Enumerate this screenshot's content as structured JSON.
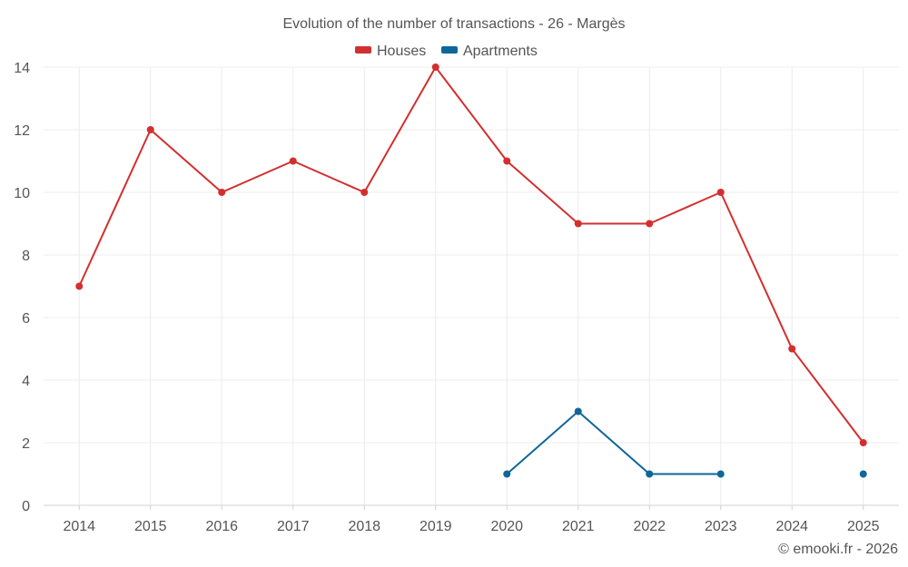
{
  "chart_data": {
    "type": "line",
    "title": "Evolution of the number of transactions - 26 - Margès",
    "categories": [
      "2014",
      "2015",
      "2016",
      "2017",
      "2018",
      "2019",
      "2020",
      "2021",
      "2022",
      "2023",
      "2024",
      "2025"
    ],
    "ylim": [
      0,
      14
    ],
    "yticks": [
      0,
      2,
      4,
      6,
      8,
      10,
      12,
      14
    ],
    "grid": true,
    "legend_position": "top-center",
    "series": [
      {
        "name": "Houses",
        "color": "#d32f2f",
        "values": [
          7,
          12,
          10,
          11,
          10,
          14,
          11,
          9,
          9,
          10,
          5,
          2
        ]
      },
      {
        "name": "Apartments",
        "color": "#0f6699",
        "values": [
          null,
          null,
          null,
          null,
          null,
          null,
          1,
          3,
          1,
          1,
          null,
          1
        ]
      }
    ],
    "credit": "© emooki.fr - 2026"
  }
}
